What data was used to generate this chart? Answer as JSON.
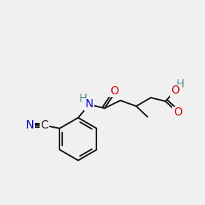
{
  "bg_color": "#f0f0f0",
  "bond_color": "#1a1a1a",
  "atom_colors": {
    "O": "#cc0000",
    "N": "#0000cc",
    "C": "#1a1a1a",
    "H": "#4a8888"
  },
  "line_width": 1.6,
  "font_size": 11.5
}
